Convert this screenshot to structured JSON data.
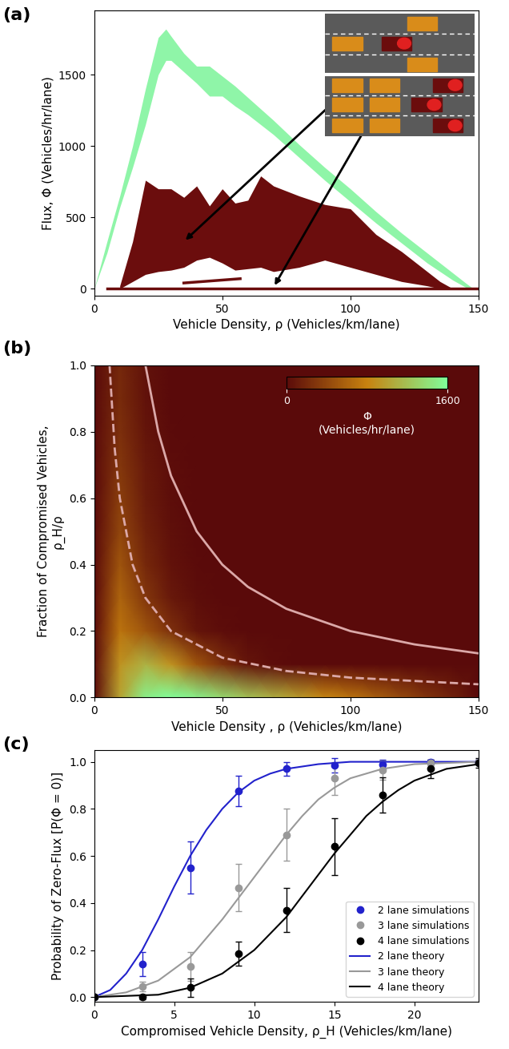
{
  "chart_data": [
    {
      "type": "band",
      "title": "(a)",
      "x_label": "Vehicle Density, ρ (Vehicles/km/lane)",
      "y_label": "Flux, Φ (Vehicles/hr/lane)",
      "xlim": [
        0,
        150
      ],
      "xticks": [
        0,
        50,
        100,
        150
      ],
      "ylim": [
        -50,
        1950
      ],
      "yticks": [
        0,
        500,
        1000,
        1500
      ],
      "series": [
        {
          "type": "band",
          "color": "#8ff5a8",
          "x": [
            0,
            5,
            10,
            15,
            20,
            25,
            28,
            30,
            35,
            40,
            45,
            50,
            55,
            60,
            70,
            80,
            90,
            100,
            110,
            120,
            130,
            140,
            145,
            148
          ],
          "upper": [
            0,
            330,
            650,
            1000,
            1400,
            1760,
            1820,
            1770,
            1650,
            1560,
            1560,
            1490,
            1420,
            1340,
            1180,
            1010,
            850,
            700,
            540,
            390,
            250,
            110,
            40,
            0
          ],
          "lower": [
            0,
            250,
            570,
            850,
            1150,
            1500,
            1600,
            1600,
            1520,
            1440,
            1350,
            1350,
            1280,
            1220,
            1080,
            920,
            760,
            610,
            460,
            320,
            180,
            60,
            10,
            0
          ]
        },
        {
          "type": "band",
          "color": "#6b0d0d",
          "x": [
            10,
            15,
            20,
            25,
            30,
            35,
            40,
            45,
            50,
            55,
            60,
            65,
            70,
            80,
            90,
            100,
            110,
            120,
            130,
            135,
            140
          ],
          "upper": [
            20,
            330,
            760,
            700,
            700,
            640,
            720,
            580,
            700,
            600,
            620,
            790,
            720,
            650,
            590,
            560,
            380,
            260,
            120,
            50,
            0
          ],
          "lower": [
            0,
            50,
            100,
            120,
            130,
            150,
            200,
            220,
            180,
            130,
            140,
            150,
            120,
            150,
            200,
            150,
            100,
            50,
            20,
            0,
            0
          ]
        },
        {
          "type": "line",
          "color": "#6b0d0d",
          "x": [
            5,
            150
          ],
          "values": [
            0,
            0
          ]
        },
        {
          "type": "line",
          "color": "#6b0d0d",
          "x": [
            35,
            57
          ],
          "values": [
            40,
            70
          ]
        }
      ]
    },
    {
      "type": "heatmap",
      "title": "(b)",
      "x_label": "Vehicle Density , ρ (Vehicles/km/lane)",
      "y_label": "Fraction of Compromised Vehicles,\nρ_H/ρ",
      "xlim": [
        0,
        150
      ],
      "xticks": [
        0,
        50,
        100,
        150
      ],
      "ylim": [
        0,
        1
      ],
      "yticks": [
        {
          "value": 0,
          "label": "0.0"
        },
        {
          "value": 0.2,
          "label": "0.2"
        },
        {
          "value": 0.4,
          "label": "0.4"
        },
        {
          "value": 0.6,
          "label": "0.6"
        },
        {
          "value": 0.8,
          "label": "0.8"
        },
        {
          "value": 1,
          "label": "1.0"
        }
      ],
      "colors": [
        "#5a0a0a",
        "#c8820f",
        "#80ff9a"
      ],
      "x": [
        0,
        10,
        20,
        30,
        40,
        50,
        60,
        70,
        80,
        90,
        100,
        110,
        120,
        130,
        140,
        150
      ],
      "y": [
        0,
        0.1,
        0.2,
        0.3,
        0.4,
        0.5,
        0.6,
        0.7,
        0.8,
        0.9,
        1.0
      ],
      "cells": [
        [
          0,
          1000,
          1500,
          1600,
          1500,
          1350,
          1200,
          1080,
          950,
          820,
          700,
          560,
          420,
          280,
          150,
          0
        ],
        [
          0,
          900,
          1100,
          900,
          500,
          250,
          80,
          20,
          0,
          0,
          0,
          0,
          0,
          0,
          0,
          0
        ],
        [
          0,
          700,
          500,
          250,
          80,
          20,
          0,
          0,
          0,
          0,
          0,
          0,
          0,
          0,
          0,
          0
        ],
        [
          0,
          600,
          300,
          100,
          30,
          0,
          0,
          0,
          0,
          0,
          0,
          0,
          0,
          0,
          0,
          0
        ],
        [
          0,
          500,
          200,
          60,
          10,
          0,
          0,
          0,
          0,
          0,
          0,
          0,
          0,
          0,
          0,
          0
        ],
        [
          0,
          400,
          150,
          40,
          0,
          0,
          0,
          0,
          0,
          0,
          0,
          0,
          0,
          0,
          0,
          0
        ],
        [
          0,
          350,
          120,
          30,
          0,
          0,
          0,
          0,
          0,
          0,
          0,
          0,
          0,
          0,
          0,
          0
        ],
        [
          0,
          300,
          100,
          20,
          0,
          0,
          0,
          0,
          0,
          0,
          0,
          0,
          0,
          0,
          0,
          0
        ],
        [
          0,
          250,
          80,
          10,
          0,
          0,
          0,
          0,
          0,
          0,
          0,
          0,
          0,
          0,
          0,
          0
        ],
        [
          0,
          220,
          60,
          0,
          0,
          0,
          0,
          0,
          0,
          0,
          0,
          0,
          0,
          0,
          0,
          0
        ],
        [
          0,
          200,
          50,
          0,
          0,
          0,
          0,
          0,
          0,
          0,
          0,
          0,
          0,
          0,
          0,
          0
        ]
      ],
      "colorbar": {
        "label": "Φ\n(Vehicles/hr/lane)",
        "range": [
          0,
          1600
        ],
        "ticks": [
          0,
          1600
        ]
      },
      "series": [
        {
          "type": "line",
          "color": "#dba8a8",
          "line_style": "solid",
          "x": [
            20,
            25,
            30,
            40,
            50,
            60,
            75,
            100,
            125,
            150
          ],
          "values": [
            1.0,
            0.8,
            0.667,
            0.5,
            0.4,
            0.333,
            0.267,
            0.2,
            0.16,
            0.133
          ]
        },
        {
          "type": "line",
          "color": "#dba8a8",
          "line_style": "dashed",
          "x": [
            6,
            8,
            10,
            15,
            20,
            30,
            50,
            75,
            100,
            150
          ],
          "values": [
            1.0,
            0.75,
            0.6,
            0.4,
            0.3,
            0.2,
            0.12,
            0.08,
            0.06,
            0.04
          ]
        }
      ]
    },
    {
      "type": "scatter",
      "title": "(c)",
      "x_label": "Compromised Vehicle Density, ρ_H (Vehicles/km/lane)",
      "y_label": "Probability of Zero-Flux [P(Φ = 0)]",
      "xlim": [
        0,
        24
      ],
      "xticks": [
        0,
        5,
        10,
        15,
        20
      ],
      "ylim": [
        -0.02,
        1.05
      ],
      "yticks": [
        {
          "value": 0,
          "label": "0.0"
        },
        {
          "value": 0.2,
          "label": "0.2"
        },
        {
          "value": 0.4,
          "label": "0.4"
        },
        {
          "value": 0.6,
          "label": "0.6"
        },
        {
          "value": 0.8,
          "label": "0.8"
        },
        {
          "value": 1,
          "label": "1.0"
        }
      ],
      "legend": "lower right",
      "series": [
        {
          "name": "2 lane simulations",
          "type": "scatter",
          "marker": "o",
          "color": "#2222cc",
          "x": [
            0,
            3,
            6,
            9,
            12,
            15,
            18,
            21,
            24
          ],
          "values": [
            0,
            0.14,
            0.55,
            0.875,
            0.97,
            0.985,
            0.99,
            1.0,
            1.0
          ],
          "errors": [
            0,
            0.05,
            0.11,
            0.065,
            0.03,
            0.03,
            0.02,
            0.01,
            0.01
          ]
        },
        {
          "name": "3 lane simulations",
          "type": "scatter",
          "marker": "o",
          "color": "#999999",
          "x": [
            0,
            3,
            6,
            9,
            12,
            15,
            18,
            21,
            24
          ],
          "values": [
            0,
            0.045,
            0.13,
            0.465,
            0.69,
            0.93,
            0.965,
            0.995,
            1.0
          ],
          "errors": [
            0,
            0.02,
            0.06,
            0.1,
            0.11,
            0.07,
            0.04,
            0.01,
            0.01
          ]
        },
        {
          "name": "4 lane simulations",
          "type": "scatter",
          "marker": "o",
          "color": "#000000",
          "x": [
            0,
            3,
            6,
            9,
            12,
            15,
            18,
            21,
            24
          ],
          "values": [
            0,
            0.0,
            0.04,
            0.185,
            0.37,
            0.64,
            0.86,
            0.97,
            0.995
          ],
          "errors": [
            0,
            0.01,
            0.04,
            0.05,
            0.095,
            0.12,
            0.075,
            0.04,
            0.02
          ]
        },
        {
          "name": "2 lane theory",
          "type": "line",
          "color": "#2222cc",
          "x": [
            0,
            1,
            2,
            3,
            4,
            5,
            6,
            7,
            8,
            9,
            10,
            11,
            12,
            14,
            16,
            24
          ],
          "values": [
            0,
            0.03,
            0.1,
            0.2,
            0.33,
            0.47,
            0.6,
            0.71,
            0.8,
            0.87,
            0.92,
            0.95,
            0.97,
            0.99,
            1.0,
            1.0
          ]
        },
        {
          "name": "3 lane theory",
          "type": "line",
          "color": "#999999",
          "x": [
            0,
            2,
            4,
            6,
            8,
            9,
            10,
            11,
            12,
            13,
            14,
            15,
            16,
            18,
            20,
            24
          ],
          "values": [
            0,
            0.02,
            0.07,
            0.17,
            0.33,
            0.42,
            0.51,
            0.6,
            0.69,
            0.77,
            0.84,
            0.89,
            0.93,
            0.97,
            0.99,
            1.0
          ]
        },
        {
          "name": "4 lane theory",
          "type": "line",
          "color": "#000000",
          "x": [
            0,
            4,
            6,
            8,
            10,
            12,
            13,
            14,
            15,
            16,
            17,
            18,
            19,
            20,
            22,
            24
          ],
          "values": [
            0,
            0.01,
            0.04,
            0.1,
            0.2,
            0.34,
            0.43,
            0.52,
            0.61,
            0.69,
            0.77,
            0.83,
            0.88,
            0.92,
            0.97,
            0.99
          ]
        }
      ]
    }
  ]
}
